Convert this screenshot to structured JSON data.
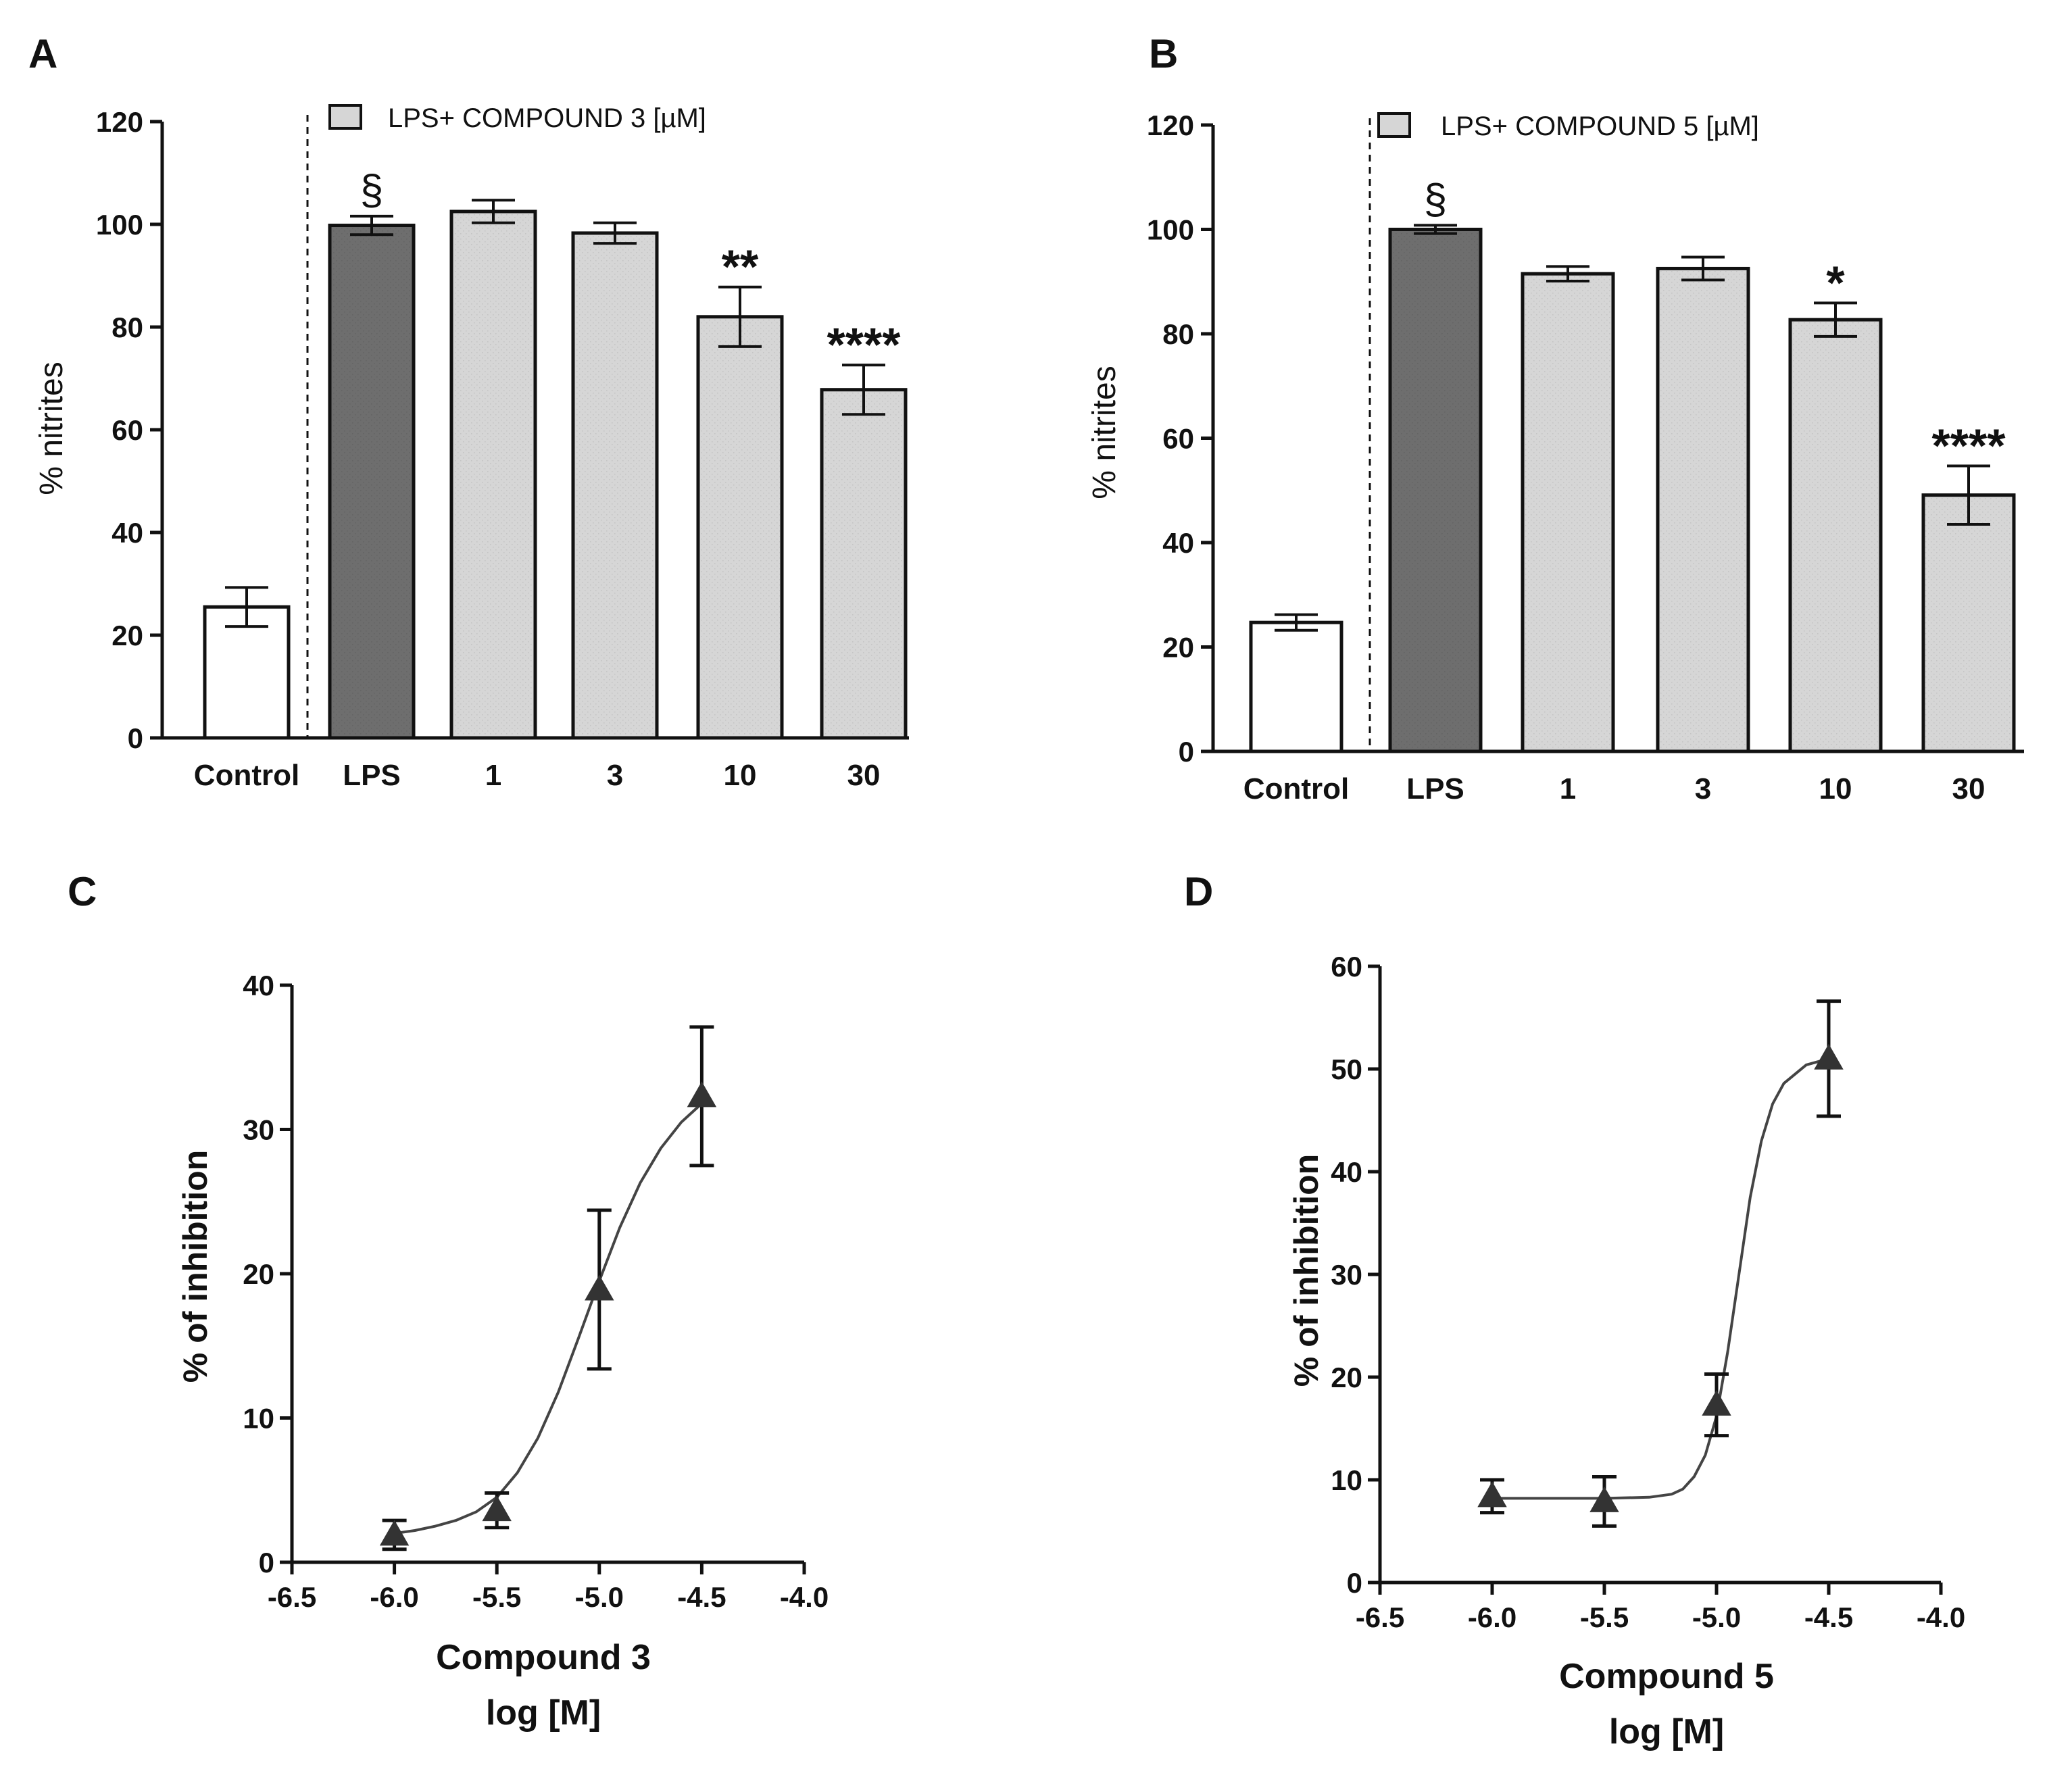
{
  "colors": {
    "axis": "#111111",
    "control_fill": "#ffffff",
    "lps_fill": "#6e6e6e",
    "compound_fill": "#d6d6d6",
    "curve": "#444444",
    "marker": "#333333"
  },
  "chart_data": [
    {
      "panel": "A",
      "type": "bar",
      "ylabel": "% nitrites",
      "ylim": [
        0,
        120
      ],
      "yticks": [
        "0",
        "20",
        "40",
        "60",
        "80",
        "100",
        "120"
      ],
      "legend": "LPS+ COMPOUND 3 [µM]",
      "categories": [
        "Control",
        "LPS",
        "1",
        "3",
        "10",
        "30"
      ],
      "values": [
        25.5,
        99.8,
        102.5,
        98.3,
        82,
        67.8
      ],
      "errors": [
        3.8,
        1.8,
        2.2,
        2.0,
        5.8,
        4.8
      ],
      "annotations": [
        "",
        "§",
        "",
        "",
        "**",
        "****"
      ]
    },
    {
      "panel": "B",
      "type": "bar",
      "ylabel": "% nitrites",
      "ylim": [
        0,
        120
      ],
      "yticks": [
        "0",
        "20",
        "40",
        "60",
        "80",
        "100",
        "120"
      ],
      "legend": "LPS+ COMPOUND 5 [µM]",
      "categories": [
        "Control",
        "LPS",
        "1",
        "3",
        "10",
        "30"
      ],
      "values": [
        24.7,
        100,
        91.5,
        92.5,
        82.7,
        49.1
      ],
      "errors": [
        1.5,
        0.8,
        1.4,
        2.2,
        3.2,
        5.6
      ],
      "annotations": [
        "",
        "§",
        "",
        "",
        "*",
        "****"
      ]
    },
    {
      "panel": "C",
      "type": "scatter",
      "xlabel": "Compound 3",
      "xlabel2": "log [M]",
      "ylabel": "% of inhibition",
      "xlim": [
        -6.5,
        -4.0
      ],
      "ylim": [
        0,
        40
      ],
      "xticks": [
        "-6.5",
        "-6.0",
        "-5.5",
        "-5.0",
        "-4.5",
        "-4.0"
      ],
      "yticks": [
        "0",
        "10",
        "20",
        "30",
        "40"
      ],
      "x": [
        -6.0,
        -5.5,
        -5.0,
        -4.5
      ],
      "y": [
        1.9,
        3.6,
        18.9,
        32.3
      ],
      "errors": [
        1.0,
        1.2,
        5.5,
        4.8
      ],
      "fit": [
        [
          -6.0,
          2.0
        ],
        [
          -5.9,
          2.2
        ],
        [
          -5.8,
          2.5
        ],
        [
          -5.7,
          2.9
        ],
        [
          -5.6,
          3.5
        ],
        [
          -5.5,
          4.5
        ],
        [
          -5.4,
          6.2
        ],
        [
          -5.3,
          8.6
        ],
        [
          -5.2,
          11.8
        ],
        [
          -5.1,
          15.6
        ],
        [
          -5.0,
          19.5
        ],
        [
          -4.9,
          23.2
        ],
        [
          -4.8,
          26.3
        ],
        [
          -4.7,
          28.7
        ],
        [
          -4.6,
          30.5
        ],
        [
          -4.5,
          31.8
        ]
      ]
    },
    {
      "panel": "D",
      "type": "scatter",
      "xlabel": "Compound 5",
      "xlabel2": "log [M]",
      "ylabel": "% of inhibition",
      "xlim": [
        -6.5,
        -4.0
      ],
      "ylim": [
        0,
        60
      ],
      "xticks": [
        "-6.5",
        "-6.0",
        "-5.5",
        "-5.0",
        "-4.5",
        "-4.0"
      ],
      "yticks": [
        "0",
        "10",
        "20",
        "30",
        "40",
        "50",
        "60"
      ],
      "x": [
        -6.0,
        -5.5,
        -5.0,
        -4.5
      ],
      "y": [
        8.4,
        7.9,
        17.3,
        51.0
      ],
      "errors": [
        1.6,
        2.4,
        3.0,
        5.6
      ],
      "fit": [
        [
          -6.0,
          8.2
        ],
        [
          -5.7,
          8.2
        ],
        [
          -5.5,
          8.2
        ],
        [
          -5.3,
          8.3
        ],
        [
          -5.2,
          8.6
        ],
        [
          -5.15,
          9.1
        ],
        [
          -5.1,
          10.3
        ],
        [
          -5.05,
          12.4
        ],
        [
          -5.0,
          16.2
        ],
        [
          -4.95,
          22.5
        ],
        [
          -4.9,
          30.0
        ],
        [
          -4.85,
          37.5
        ],
        [
          -4.8,
          43.0
        ],
        [
          -4.75,
          46.6
        ],
        [
          -4.7,
          48.6
        ],
        [
          -4.6,
          50.4
        ],
        [
          -4.5,
          51.0
        ]
      ]
    }
  ]
}
